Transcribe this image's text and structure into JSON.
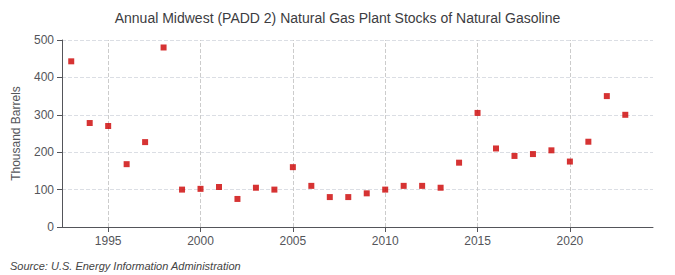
{
  "chart_data": {
    "type": "scatter",
    "title": "Annual Midwest (PADD 2) Natural Gas Plant Stocks of Natural Gasoline",
    "ylabel": "Thousand Barrels",
    "source": "Source: U.S. Energy Information Administration",
    "x": [
      1993,
      1994,
      1995,
      1996,
      1997,
      1998,
      1999,
      2000,
      2001,
      2002,
      2003,
      2004,
      2005,
      2006,
      2007,
      2008,
      2009,
      2010,
      2011,
      2012,
      2013,
      2014,
      2015,
      2016,
      2017,
      2018,
      2019,
      2020,
      2021,
      2022,
      2023
    ],
    "values": [
      443,
      278,
      270,
      168,
      227,
      480,
      100,
      102,
      107,
      75,
      105,
      100,
      160,
      110,
      80,
      80,
      90,
      100,
      110,
      110,
      105,
      172,
      305,
      210,
      190,
      195,
      205,
      175,
      228,
      350,
      300
    ],
    "color": "#cc0000",
    "marker": "square",
    "xlim": [
      1992.5,
      2024.5
    ],
    "xticks": [
      1995,
      2000,
      2005,
      2010,
      2015,
      2020
    ],
    "ylim": [
      0,
      500
    ],
    "yticks": [
      0,
      100,
      200,
      300,
      400,
      500
    ],
    "grid": true
  }
}
